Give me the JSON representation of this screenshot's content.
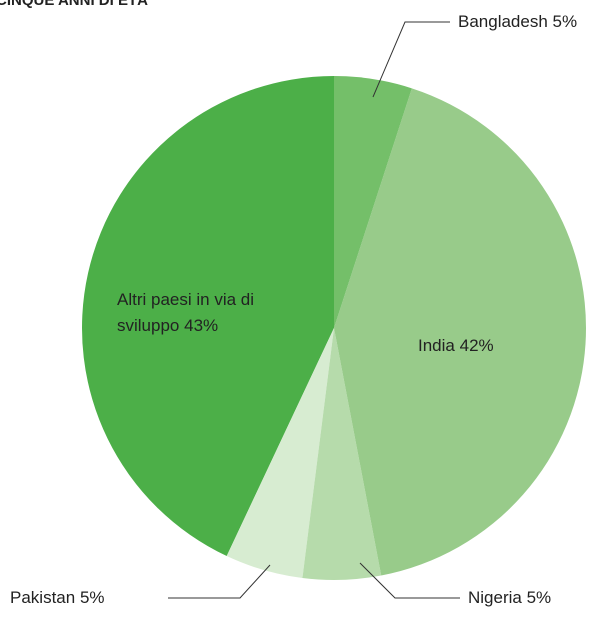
{
  "chart_data": {
    "type": "pie",
    "title": "CINQUE ANNI DI ETÀ",
    "categories": [
      "Bangladesh",
      "India",
      "Nigeria",
      "Pakistan",
      "Altri paesi in via di sviluppo"
    ],
    "values": [
      5,
      42,
      5,
      5,
      43
    ],
    "value_labels": [
      "5%",
      "42%",
      "5%",
      "5%",
      "43%"
    ],
    "colors": [
      "#74bf69",
      "#98cb8a",
      "#b6dbab",
      "#d7ecd1",
      "#4caf48"
    ]
  }
}
